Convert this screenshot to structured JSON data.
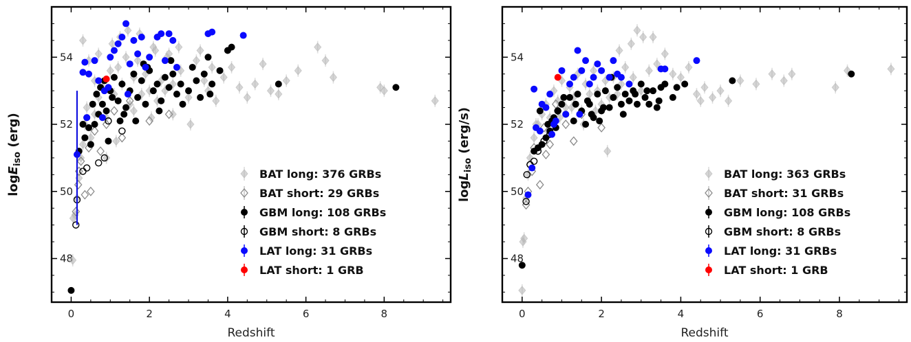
{
  "chart_data": [
    {
      "type": "scatter",
      "xlabel": "Redshift",
      "ylabel_main": "log",
      "ylabel_var": "E",
      "ylabel_sub": "iso",
      "ylabel_unit": " (erg)",
      "xlim": [
        -0.5,
        9.7
      ],
      "ylim": [
        46.7,
        55.5
      ],
      "xticks": [
        "0",
        "2",
        "4",
        "6",
        "8"
      ],
      "xtick_values": [
        0,
        2,
        4,
        6,
        8
      ],
      "yticks": [
        "48",
        "50",
        "52",
        "54"
      ],
      "ytick_values": [
        48,
        50,
        52,
        54
      ],
      "grid": false,
      "legend_position": "lower-right",
      "legend": [
        {
          "label": "BAT long: 376 GRBs",
          "color": "#b5b5b5",
          "marker": "diamond-filled"
        },
        {
          "label": "BAT short: 29 GRBs",
          "color": "#8a8a8a",
          "marker": "diamond-open"
        },
        {
          "label": "GBM long: 108 GRBs",
          "color": "#000000",
          "marker": "circle-filled"
        },
        {
          "label": "GBM short: 8 GRBs",
          "color": "#000000",
          "marker": "circle-open"
        },
        {
          "label": "LAT long: 31 GRBs",
          "color": "#0a0aff",
          "marker": "circle-filled"
        },
        {
          "label": "LAT short: 1 GRB",
          "color": "#ff0000",
          "marker": "circle-filled"
        }
      ],
      "series": [
        {
          "name": "BAT long: 376 GRBs",
          "x": [
            0.04,
            0.1,
            0.15,
            0.2,
            0.25,
            0.3,
            0.35,
            0.4,
            0.5,
            0.6,
            0.7,
            0.8,
            0.9,
            1.0,
            1.1,
            1.2,
            1.3,
            1.4,
            1.5,
            1.6,
            1.7,
            1.8,
            1.9,
            2.0,
            2.1,
            2.2,
            2.3,
            2.4,
            2.5,
            2.6,
            2.8,
            3.0,
            3.2,
            3.4,
            3.5,
            3.7,
            3.9,
            4.1,
            4.3,
            4.5,
            4.7,
            4.9,
            5.1,
            5.3,
            5.5,
            5.8,
            6.3,
            6.5,
            6.7,
            7.9,
            8.0,
            9.3,
            0.3,
            0.45,
            0.7,
            1.05,
            1.25,
            1.45,
            1.75,
            2.15,
            2.45,
            2.75,
            3.3,
            3.6,
            0.05,
            0.9,
            1.15,
            2.05,
            3.05,
            0.6,
            1.6,
            2.6
          ],
          "y": [
            47.95,
            49.3,
            49.8,
            50.4,
            51.0,
            51.4,
            52.0,
            52.5,
            51.6,
            52.3,
            52.8,
            53.1,
            52.2,
            53.6,
            52.9,
            53.7,
            53.2,
            54.0,
            52.6,
            53.4,
            53.9,
            52.9,
            53.5,
            53.0,
            54.3,
            52.7,
            53.3,
            53.0,
            54.1,
            53.2,
            53.6,
            52.8,
            53.9,
            53.3,
            53.0,
            52.7,
            53.4,
            53.7,
            53.1,
            52.8,
            53.2,
            53.8,
            53.0,
            52.9,
            53.3,
            53.6,
            54.3,
            53.9,
            53.4,
            53.1,
            53.0,
            52.7,
            54.5,
            53.9,
            54.1,
            54.4,
            54.6,
            54.8,
            54.7,
            54.2,
            54.0,
            54.3,
            54.2,
            53.7,
            49.2,
            51.0,
            51.5,
            52.2,
            52.0,
            53.3,
            52.4,
            52.3
          ]
        },
        {
          "name": "BAT short: 29 GRBs",
          "x": [
            0.12,
            0.18,
            0.25,
            0.35,
            0.45,
            0.6,
            0.75,
            0.9,
            1.1,
            1.3,
            1.5,
            2.0,
            2.5,
            0.2,
            0.5
          ],
          "y": [
            49.4,
            50.2,
            50.9,
            49.9,
            51.3,
            51.8,
            51.2,
            52.0,
            52.4,
            51.6,
            52.7,
            52.1,
            52.3,
            50.6,
            50.0
          ]
        },
        {
          "name": "GBM long: 108 GRBs",
          "x": [
            0.0,
            0.2,
            0.3,
            0.35,
            0.4,
            0.5,
            0.55,
            0.6,
            0.65,
            0.7,
            0.75,
            0.8,
            0.85,
            0.9,
            1.0,
            1.05,
            1.1,
            1.2,
            1.3,
            1.4,
            1.5,
            1.6,
            1.7,
            1.8,
            1.9,
            2.0,
            2.1,
            2.2,
            2.3,
            2.4,
            2.5,
            2.6,
            2.7,
            2.8,
            3.0,
            3.1,
            3.2,
            3.3,
            3.4,
            3.5,
            3.6,
            3.8,
            4.0,
            4.1,
            5.3,
            8.3,
            0.45,
            0.95,
            1.35,
            1.65,
            1.95,
            2.25,
            2.55,
            2.85,
            3.55,
            1.25,
            1.85
          ],
          "y": [
            47.05,
            51.2,
            52.0,
            51.6,
            52.2,
            51.4,
            52.6,
            52.0,
            52.9,
            52.3,
            53.1,
            52.6,
            53.3,
            52.4,
            53.0,
            52.8,
            53.4,
            52.7,
            53.2,
            52.5,
            53.0,
            53.5,
            52.8,
            53.3,
            52.6,
            53.6,
            53.0,
            53.2,
            52.7,
            53.4,
            53.1,
            53.5,
            52.9,
            53.2,
            53.0,
            53.7,
            53.3,
            52.8,
            53.5,
            54.0,
            53.2,
            53.6,
            54.2,
            54.3,
            53.2,
            53.1,
            51.9,
            51.5,
            52.3,
            52.1,
            53.7,
            52.4,
            53.9,
            52.6,
            52.9,
            52.1,
            53.8
          ]
        },
        {
          "name": "GBM short: 8 GRBs",
          "x": [
            0.12,
            0.15,
            0.4,
            0.7,
            0.85,
            1.3,
            0.95,
            0.3
          ],
          "y": [
            49.0,
            49.75,
            50.7,
            50.85,
            51.0,
            51.8,
            52.1,
            50.6
          ]
        },
        {
          "name": "LAT long: 31 GRBs",
          "x": [
            0.15,
            0.3,
            0.35,
            0.45,
            0.6,
            0.7,
            0.8,
            0.85,
            1.0,
            1.2,
            1.3,
            1.4,
            1.5,
            1.6,
            1.7,
            1.8,
            1.9,
            2.0,
            2.2,
            2.3,
            2.4,
            2.5,
            2.6,
            3.5,
            3.6,
            4.4,
            1.45,
            0.4,
            0.95,
            1.1,
            2.7
          ],
          "y": [
            51.1,
            53.55,
            53.85,
            53.5,
            53.9,
            53.3,
            52.2,
            53.0,
            54.0,
            54.4,
            54.6,
            55.0,
            53.8,
            54.5,
            54.1,
            54.6,
            53.7,
            54.0,
            54.6,
            54.7,
            53.9,
            54.7,
            54.5,
            54.7,
            54.75,
            54.65,
            52.9,
            52.2,
            53.1,
            54.2,
            53.7
          ]
        },
        {
          "name": "LAT short: 1 GRB",
          "x": [
            0.9
          ],
          "y": [
            53.35
          ]
        }
      ],
      "annotations": [
        {
          "kind": "error-bar",
          "x": 0.15,
          "y_low": 49.0,
          "y_high": 53.0,
          "color": "#1010e0"
        }
      ]
    },
    {
      "type": "scatter",
      "xlabel": "Redshift",
      "ylabel_main": "log",
      "ylabel_var": "L",
      "ylabel_sub": "iso",
      "ylabel_unit": " (erg/s)",
      "xlim": [
        -0.5,
        9.7
      ],
      "ylim": [
        46.7,
        55.5
      ],
      "xticks": [
        "0",
        "2",
        "4",
        "6",
        "8"
      ],
      "xtick_values": [
        0,
        2,
        4,
        6,
        8
      ],
      "yticks": [
        "48",
        "50",
        "52",
        "54"
      ],
      "ytick_values": [
        48,
        50,
        52,
        54
      ],
      "grid": false,
      "legend_position": "lower-right",
      "legend": [
        {
          "label": "BAT long: 363 GRBs",
          "color": "#b5b5b5",
          "marker": "diamond-filled"
        },
        {
          "label": "BAT short: 31 GRBs",
          "color": "#8a8a8a",
          "marker": "diamond-open"
        },
        {
          "label": "GBM long: 108 GRBs",
          "color": "#000000",
          "marker": "circle-filled"
        },
        {
          "label": "GBM short: 8 GRBs",
          "color": "#000000",
          "marker": "circle-open"
        },
        {
          "label": "LAT long: 31 GRBs",
          "color": "#0a0aff",
          "marker": "circle-filled"
        },
        {
          "label": "LAT short: 1 GRB",
          "color": "#ff0000",
          "marker": "circle-filled"
        }
      ],
      "series": [
        {
          "name": "BAT long: 363 GRBs",
          "x": [
            0.0,
            0.02,
            0.05,
            0.1,
            0.15,
            0.2,
            0.3,
            0.4,
            0.5,
            0.6,
            0.7,
            0.8,
            0.9,
            1.0,
            1.1,
            1.2,
            1.3,
            1.4,
            1.5,
            1.6,
            1.7,
            1.8,
            1.9,
            2.0,
            2.1,
            2.2,
            2.3,
            2.4,
            2.5,
            2.6,
            2.8,
            3.0,
            3.2,
            3.4,
            3.6,
            3.8,
            4.0,
            4.2,
            4.4,
            4.6,
            4.8,
            5.0,
            5.2,
            5.5,
            5.9,
            6.3,
            6.6,
            6.8,
            7.9,
            8.2,
            9.3,
            0.35,
            0.65,
            0.95,
            1.25,
            1.55,
            1.85,
            2.15,
            2.45,
            2.75,
            3.05,
            3.3,
            2.9,
            4.5
          ],
          "y": [
            47.05,
            48.5,
            48.6,
            49.8,
            50.5,
            51.0,
            51.6,
            52.0,
            52.3,
            52.6,
            52.2,
            53.0,
            52.7,
            53.3,
            52.5,
            53.1,
            52.8,
            53.5,
            52.4,
            53.2,
            52.9,
            53.6,
            53.0,
            52.6,
            53.3,
            52.8,
            53.4,
            52.9,
            53.2,
            53.7,
            53.4,
            53.0,
            53.6,
            53.8,
            54.1,
            53.5,
            53.4,
            53.7,
            52.9,
            53.1,
            52.8,
            53.0,
            52.7,
            53.3,
            53.2,
            53.5,
            53.3,
            53.5,
            53.1,
            53.6,
            53.65,
            52.0,
            51.8,
            52.2,
            52.5,
            52.0,
            52.4,
            51.2,
            54.2,
            54.4,
            54.6,
            54.6,
            54.8,
            52.7
          ]
        },
        {
          "name": "BAT short: 31 GRBs",
          "x": [
            0.1,
            0.15,
            0.2,
            0.3,
            0.45,
            0.55,
            0.7,
            0.9,
            1.1,
            1.3,
            1.5,
            2.0,
            0.25,
            0.6,
            0.85
          ],
          "y": [
            49.6,
            50.0,
            50.8,
            51.3,
            50.2,
            51.9,
            51.4,
            52.4,
            52.0,
            51.5,
            52.3,
            51.9,
            50.6,
            51.1,
            52.6
          ]
        },
        {
          "name": "GBM long: 108 GRBs",
          "x": [
            0.0,
            0.3,
            0.4,
            0.5,
            0.6,
            0.65,
            0.7,
            0.8,
            0.9,
            1.0,
            1.1,
            1.2,
            1.3,
            1.4,
            1.5,
            1.6,
            1.7,
            1.8,
            1.9,
            2.0,
            2.1,
            2.2,
            2.3,
            2.4,
            2.5,
            2.6,
            2.7,
            2.8,
            2.9,
            3.0,
            3.1,
            3.2,
            3.3,
            3.4,
            3.5,
            3.6,
            3.8,
            3.9,
            4.1,
            5.3,
            8.3,
            0.45,
            0.75,
            0.85,
            1.05,
            1.35,
            1.65,
            1.95,
            2.25,
            2.55,
            2.85,
            3.15,
            3.45,
            1.75,
            2.05
          ],
          "y": [
            47.8,
            51.2,
            51.3,
            51.4,
            51.6,
            52.0,
            51.8,
            52.2,
            52.4,
            52.6,
            52.3,
            52.8,
            52.1,
            52.9,
            52.4,
            52.0,
            52.6,
            52.2,
            52.9,
            52.4,
            53.0,
            52.5,
            52.8,
            53.1,
            52.6,
            52.9,
            52.7,
            53.0,
            52.6,
            53.2,
            52.8,
            52.6,
            53.0,
            52.5,
            53.1,
            53.2,
            52.8,
            53.1,
            53.2,
            53.3,
            53.5,
            52.4,
            52.1,
            51.9,
            52.8,
            52.6,
            52.7,
            52.1,
            53.4,
            52.3,
            52.9,
            53.0,
            52.7,
            52.3,
            52.5
          ]
        },
        {
          "name": "GBM short: 8 GRBs",
          "x": [
            0.1,
            0.12,
            0.2,
            0.4,
            0.7,
            0.9,
            0.3,
            0.55
          ],
          "y": [
            49.7,
            50.5,
            50.8,
            51.2,
            51.7,
            52.4,
            50.9,
            51.5
          ]
        },
        {
          "name": "LAT long: 31 GRBs",
          "x": [
            0.15,
            0.3,
            0.35,
            0.45,
            0.6,
            0.7,
            0.8,
            0.85,
            1.0,
            1.2,
            1.3,
            1.4,
            1.5,
            1.6,
            1.7,
            1.8,
            1.9,
            2.0,
            2.2,
            2.3,
            2.4,
            2.5,
            2.7,
            3.5,
            3.6,
            4.4,
            0.75,
            1.1,
            0.5,
            1.45,
            0.25
          ],
          "y": [
            49.9,
            53.05,
            51.9,
            51.8,
            52.5,
            52.9,
            52.0,
            52.1,
            53.6,
            53.2,
            53.4,
            54.2,
            53.6,
            53.9,
            53.2,
            53.4,
            53.8,
            53.6,
            53.4,
            53.9,
            53.5,
            53.4,
            53.2,
            53.65,
            53.65,
            53.9,
            51.7,
            52.3,
            52.6,
            52.3,
            50.7
          ]
        },
        {
          "name": "LAT short: 1 GRB",
          "x": [
            0.9
          ],
          "y": [
            53.4
          ]
        }
      ],
      "annotations": []
    }
  ]
}
